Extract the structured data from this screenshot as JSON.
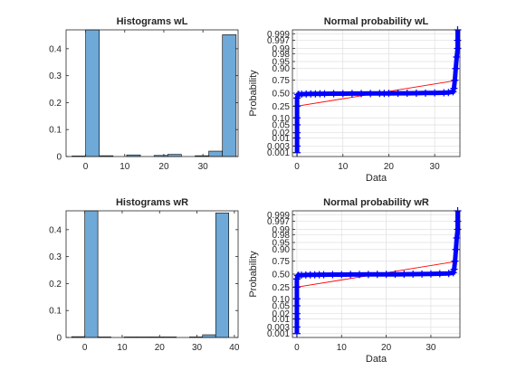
{
  "chart_data": [
    {
      "type": "bar",
      "title": "Histograms wL",
      "xlabel": "",
      "ylabel": "",
      "xlim": [
        -5,
        39
      ],
      "ylim": [
        0,
        0.47
      ],
      "xticks": [
        0,
        10,
        20,
        30
      ],
      "yticks": [
        0,
        0.1,
        0.2,
        0.3,
        0.4
      ],
      "bin_edges": [
        -3.5,
        0,
        3.5,
        7,
        10.5,
        14,
        17.5,
        21,
        24.5,
        28,
        31.5,
        35,
        38.5
      ],
      "values": [
        0.002,
        0.47,
        0.003,
        0.0,
        0.006,
        0.0,
        0.004,
        0.008,
        0.0,
        0.003,
        0.02,
        0.452
      ],
      "bar_color": "#6ea9d7"
    },
    {
      "type": "scatter",
      "title": "Normal probability wL",
      "xlabel": "Data",
      "ylabel": "Probability",
      "xlim": [
        -1,
        35.5
      ],
      "xticks": [
        0,
        10,
        20,
        30
      ],
      "yticks": [
        0.001,
        0.003,
        0.01,
        0.02,
        0.05,
        0.1,
        0.25,
        0.5,
        0.75,
        0.9,
        0.95,
        0.98,
        0.99,
        0.997,
        0.999
      ],
      "yticklabels": [
        "0.001",
        "0.003",
        "0.01",
        "0.02",
        "0.05",
        "0.10",
        "0.25",
        "0.50",
        "0.75",
        "0.90",
        "0.95",
        "0.98",
        "0.99",
        "0.997",
        "0.999"
      ],
      "grid": true,
      "x": [
        0,
        0,
        0,
        0,
        0,
        0,
        0,
        0,
        0.2,
        0.4,
        1,
        2,
        3,
        4,
        5,
        6,
        8,
        10,
        12,
        14,
        16,
        18,
        19,
        20,
        22,
        24,
        26,
        28,
        30,
        32,
        33,
        34,
        34.2,
        34.4,
        34.6,
        34.8,
        35,
        35,
        35
      ],
      "p": [
        0.001,
        0.003,
        0.01,
        0.02,
        0.05,
        0.1,
        0.25,
        0.4,
        0.47,
        0.475,
        0.48,
        0.483,
        0.485,
        0.487,
        0.488,
        0.489,
        0.49,
        0.491,
        0.492,
        0.493,
        0.494,
        0.495,
        0.496,
        0.497,
        0.498,
        0.499,
        0.5,
        0.503,
        0.506,
        0.51,
        0.515,
        0.53,
        0.6,
        0.75,
        0.9,
        0.97,
        0.99,
        0.997,
        0.9995
      ],
      "fit_line": {
        "x": [
          0,
          35
        ],
        "p": [
          0.25,
          0.75
        ]
      },
      "marker_color": "#0000ff",
      "line_color": "#ff0000"
    },
    {
      "type": "bar",
      "title": "Histograms wR",
      "xlabel": "",
      "ylabel": "",
      "xlim": [
        -5,
        41
      ],
      "ylim": [
        0,
        0.47
      ],
      "xticks": [
        0,
        10,
        20,
        30,
        40
      ],
      "yticks": [
        0,
        0.1,
        0.2,
        0.3,
        0.4
      ],
      "bin_edges": [
        -3.5,
        0,
        3.5,
        7,
        10.5,
        14,
        17.5,
        21,
        24.5,
        28,
        31.5,
        35,
        38.5
      ],
      "values": [
        0.003,
        0.47,
        0.002,
        0.0,
        0.002,
        0.002,
        0.002,
        0.002,
        0.0,
        0.002,
        0.01,
        0.462
      ],
      "bar_color": "#6ea9d7"
    },
    {
      "type": "scatter",
      "title": "Normal probability wR",
      "xlabel": "Data",
      "ylabel": "Probability",
      "xlim": [
        -1,
        36.5
      ],
      "xticks": [
        0,
        10,
        20,
        30
      ],
      "yticks": [
        0.001,
        0.003,
        0.01,
        0.02,
        0.05,
        0.1,
        0.25,
        0.5,
        0.75,
        0.9,
        0.95,
        0.98,
        0.99,
        0.997,
        0.999
      ],
      "yticklabels": [
        "0.001",
        "0.003",
        "0.01",
        "0.02",
        "0.05",
        "0.10",
        "0.25",
        "0.50",
        "0.75",
        "0.90",
        "0.95",
        "0.98",
        "0.99",
        "0.997",
        "0.999"
      ],
      "grid": true,
      "x": [
        0,
        0,
        0,
        0,
        0,
        0,
        0,
        0,
        0.2,
        0.4,
        1,
        2,
        3,
        4,
        5,
        6,
        8,
        10,
        12,
        14,
        16,
        18,
        20,
        22,
        24,
        26,
        28,
        30,
        32,
        34,
        35,
        35.2,
        35.4,
        35.6,
        35.8,
        36,
        36,
        36
      ],
      "p": [
        0.001,
        0.003,
        0.01,
        0.02,
        0.05,
        0.1,
        0.25,
        0.4,
        0.47,
        0.475,
        0.48,
        0.483,
        0.485,
        0.487,
        0.488,
        0.489,
        0.49,
        0.491,
        0.492,
        0.493,
        0.494,
        0.495,
        0.496,
        0.497,
        0.498,
        0.5,
        0.502,
        0.505,
        0.51,
        0.515,
        0.53,
        0.6,
        0.75,
        0.9,
        0.97,
        0.99,
        0.997,
        0.9995
      ],
      "fit_line": {
        "x": [
          0,
          36
        ],
        "p": [
          0.25,
          0.75
        ]
      },
      "marker_color": "#0000ff",
      "line_color": "#ff0000"
    }
  ]
}
